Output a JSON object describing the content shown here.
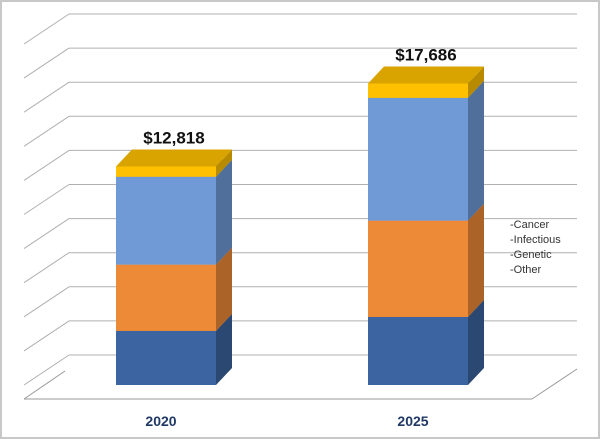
{
  "chart_data": {
    "type": "bar",
    "stacked": true,
    "categories": [
      "2020",
      "2025"
    ],
    "totals_labels": [
      "$12,818",
      "$17,686"
    ],
    "series": [
      {
        "name": "Cancer",
        "values": [
          3170,
          3990
        ],
        "color": "#3c64a0"
      },
      {
        "name": "Infectious",
        "values": [
          3890,
          5650
        ],
        "color": "#ed8a37"
      },
      {
        "name": "Genetic",
        "values": [
          5150,
          7200
        ],
        "color": "#6f9ad6"
      },
      {
        "name": "Other",
        "values": [
          608,
          846
        ],
        "color": "#ffc000"
      }
    ],
    "ylim": [
      0,
      20000
    ],
    "grid": true,
    "legend_position": "right",
    "legend_labels": [
      "-Cancer",
      "-Infectious",
      "-Genetic",
      "-Other"
    ]
  }
}
